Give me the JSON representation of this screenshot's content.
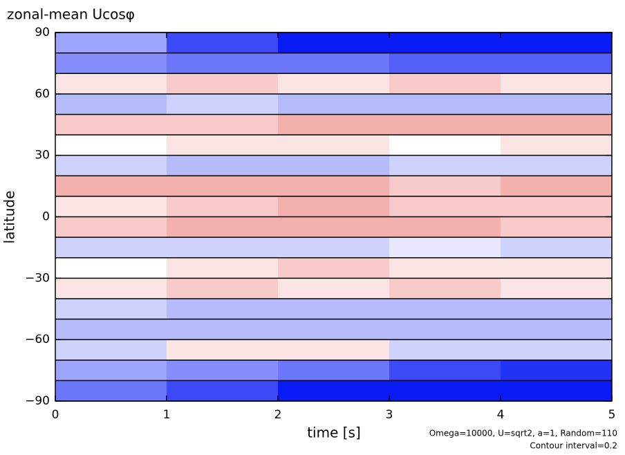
{
  "chart_data": {
    "type": "heatmap",
    "title": "zonal-mean Ucosφ",
    "xlabel": "time [s]",
    "ylabel": "latitude",
    "notes": [
      "Omega=10000, U=sqrt2, a=1, Random=110",
      "Contour interval=0.2"
    ],
    "xbins": [
      0,
      1,
      2,
      3,
      4,
      5
    ],
    "ybins": [
      -90,
      -80,
      -70,
      -60,
      -50,
      -40,
      -30,
      -20,
      -10,
      0,
      10,
      20,
      30,
      40,
      50,
      60,
      70,
      80,
      90
    ],
    "values": [
      [
        -0.6,
        -0.8,
        -1.0,
        -1.0,
        -1.0
      ],
      [
        -0.4,
        -0.5,
        -0.6,
        -0.8,
        -0.9
      ],
      [
        -0.2,
        0.1,
        0.1,
        -0.2,
        -0.2
      ],
      [
        -0.3,
        -0.3,
        -0.3,
        -0.3,
        -0.3
      ],
      [
        -0.2,
        -0.3,
        -0.3,
        -0.3,
        -0.3
      ],
      [
        0.1,
        0.2,
        0.1,
        0.2,
        0.1
      ],
      [
        0.0,
        0.1,
        0.2,
        0.1,
        0.1
      ],
      [
        -0.2,
        -0.2,
        -0.2,
        -0.1,
        -0.2
      ],
      [
        0.2,
        0.3,
        0.3,
        0.3,
        0.2
      ],
      [
        0.1,
        0.2,
        0.3,
        0.2,
        0.2
      ],
      [
        0.3,
        0.3,
        0.3,
        0.2,
        0.3
      ],
      [
        -0.2,
        -0.3,
        -0.3,
        -0.2,
        -0.2
      ],
      [
        0.0,
        0.1,
        0.1,
        0.0,
        0.1
      ],
      [
        0.2,
        0.2,
        0.3,
        0.3,
        0.3
      ],
      [
        -0.3,
        -0.2,
        -0.3,
        -0.3,
        -0.3
      ],
      [
        0.1,
        0.2,
        0.1,
        0.2,
        0.1
      ],
      [
        -0.5,
        -0.6,
        -0.6,
        -0.7,
        -0.7
      ],
      [
        -0.4,
        -0.8,
        -1.0,
        -1.0,
        -1.0
      ]
    ],
    "colors": {
      "negative": "#0a1cf5",
      "positive": "#e85a55",
      "zero": "#ffffff"
    },
    "xlim": [
      0,
      5
    ],
    "xticks": [
      0,
      1,
      2,
      3,
      4,
      5
    ],
    "ylim": [
      -90,
      90
    ],
    "yticks": [
      {
        "value": -90,
        "label": "−90"
      },
      {
        "value": -60,
        "label": "−60"
      },
      {
        "value": -30,
        "label": "−30"
      },
      0,
      30,
      60,
      90
    ]
  }
}
